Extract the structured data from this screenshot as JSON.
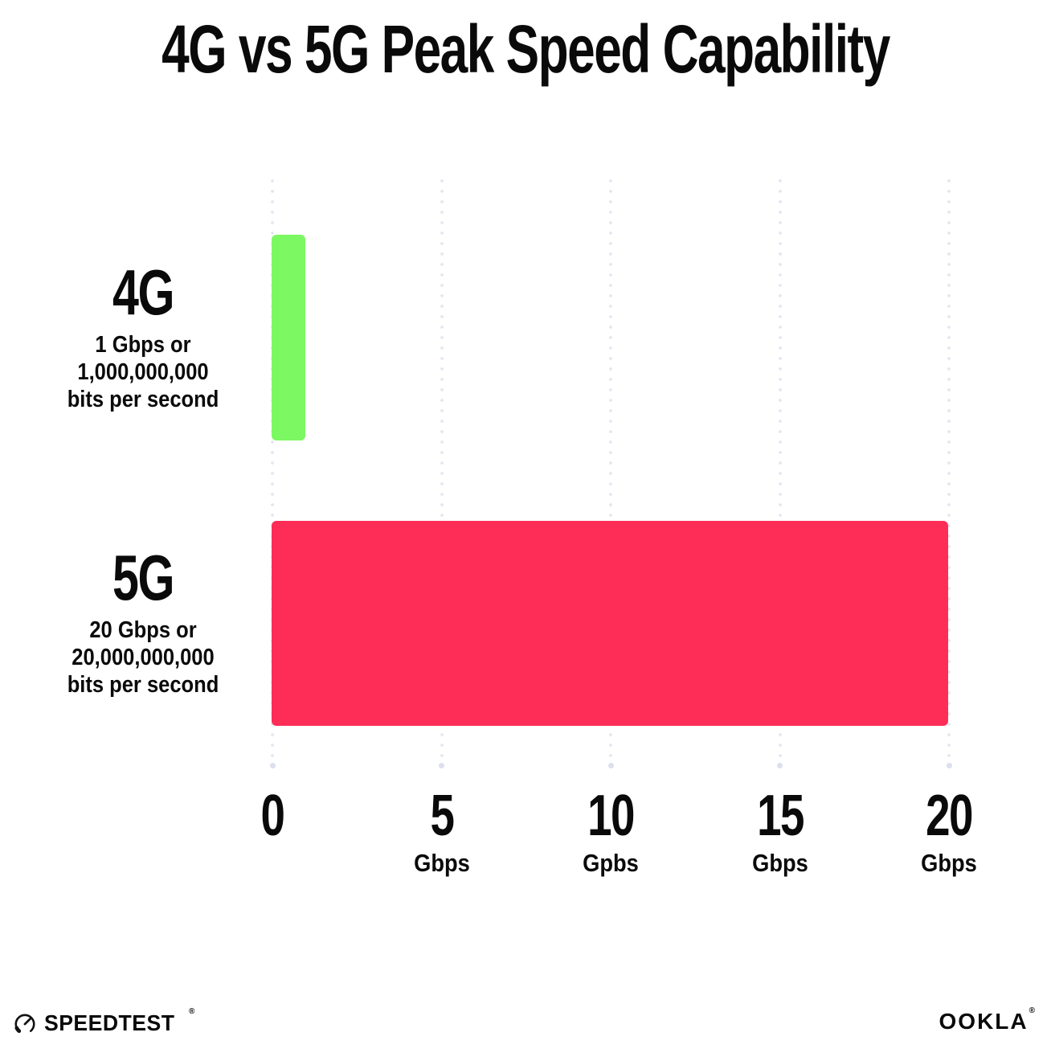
{
  "chart_data": {
    "type": "bar",
    "orientation": "horizontal",
    "title": "4G vs 5G Peak Speed Capability",
    "categories": [
      "4G",
      "5G"
    ],
    "values": [
      1,
      20
    ],
    "unit": "Gbps",
    "category_sublabels": [
      [
        "1 Gbps or",
        "1,000,000,000",
        "bits per second"
      ],
      [
        "20 Gbps or",
        "20,000,000,000",
        "bits per second"
      ]
    ],
    "bar_colors": [
      "#7CF862",
      "#FD2D58"
    ],
    "xlim": [
      0,
      20
    ],
    "ticks": [
      {
        "value": 0,
        "label": "0",
        "unit": ""
      },
      {
        "value": 5,
        "label": "5",
        "unit": "Gbps"
      },
      {
        "value": 10,
        "label": "10",
        "unit": "Gpbs"
      },
      {
        "value": 15,
        "label": "15",
        "unit": "Gbps"
      },
      {
        "value": 20,
        "label": "20",
        "unit": "Gbps"
      }
    ],
    "grid": "dotted-vertical-gridlines",
    "gridline_color": "#E3E5F1",
    "legend": "none",
    "background": "#FFFFFF",
    "text_color": "#0A0A0A"
  },
  "footer": {
    "speedtest_label": "SPEEDTEST",
    "ookla_label": "OOKLA",
    "trademark_mark": "®"
  }
}
